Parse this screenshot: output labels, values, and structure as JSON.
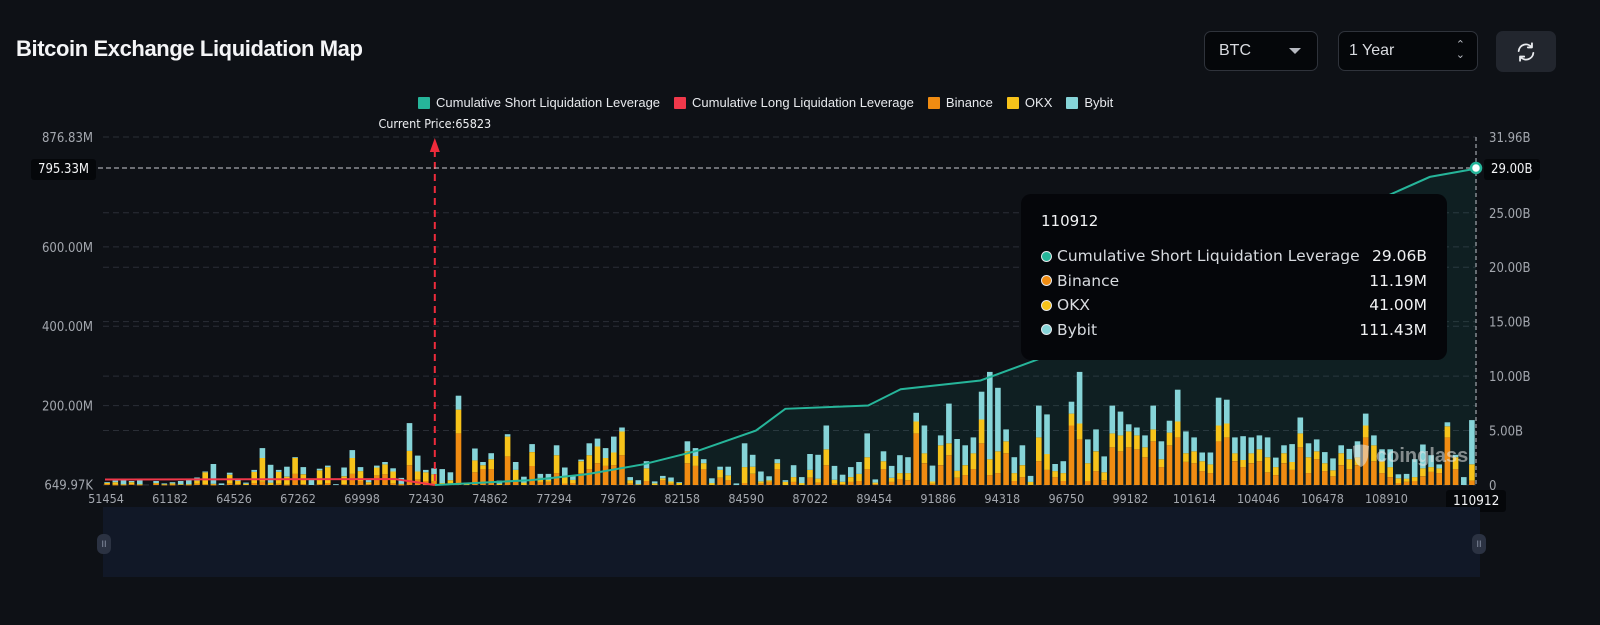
{
  "header": {
    "title": "Bitcoin Exchange Liquidation Map",
    "symbol_select": {
      "value": "BTC",
      "icon": "caret-down-icon"
    },
    "range_select": {
      "value": "1 Year",
      "icon": "up-down-chevron-icon"
    },
    "refresh_button": {
      "icon": "refresh-icon"
    }
  },
  "colors": {
    "short_cum": "#26b59a",
    "long_cum": "#f0384a",
    "binance": "#f08c12",
    "okx": "#f7c31a",
    "bybit": "#86d4d8",
    "current_price_line": "#ee2b3b",
    "background": "#0e1116"
  },
  "tooltip": {
    "title": "110912",
    "rows": [
      {
        "label": "Cumulative Short Liquidation Leverage",
        "value": "29.06B",
        "color": "#26b59a"
      },
      {
        "label": "Binance",
        "value": "11.19M",
        "color": "#f08c12"
      },
      {
        "label": "OKX",
        "value": "41.00M",
        "color": "#f7c31a"
      },
      {
        "label": "Bybit",
        "value": "111.43M",
        "color": "#86d4d8"
      }
    ]
  },
  "crosshair": {
    "left_value_label": "795.33M",
    "right_value_label": "29.00B",
    "x_label": "110912"
  },
  "watermark": "coinglass",
  "chart_data": {
    "type": "bar",
    "title": "Bitcoin Exchange Liquidation Map",
    "stacked": true,
    "legend": [
      "Cumulative Short Liquidation Leverage",
      "Cumulative Long Liquidation Leverage",
      "Binance",
      "OKX",
      "Bybit"
    ],
    "legend_position": "top-center",
    "x_tick_labels": [
      "51454",
      "61182",
      "64526",
      "67262",
      "69998",
      "72430",
      "74862",
      "77294",
      "79726",
      "82158",
      "84590",
      "87022",
      "89454",
      "91886",
      "94318",
      "96750",
      "99182",
      "101614",
      "104046",
      "106478",
      "108910",
      "110912"
    ],
    "x_range": [
      51454,
      110912
    ],
    "y_left": {
      "min_label": "649.97K",
      "max_label": "876.83M",
      "ticks": [
        "649.97K",
        "200.00M",
        "400.00M",
        "600.00M",
        "876.83M"
      ],
      "tick_values_m": [
        0.65,
        200,
        400,
        600,
        876.83
      ],
      "range_m": [
        0,
        876.83
      ]
    },
    "y_right": {
      "ticks": [
        "0",
        "5.00B",
        "10.00B",
        "15.00B",
        "20.00B",
        "25.00B",
        "31.96B"
      ],
      "tick_values_b": [
        0,
        5,
        10,
        15,
        20,
        25,
        31.96
      ],
      "range_b": [
        0,
        31.96
      ]
    },
    "current_price": {
      "label": "Current Price:65823",
      "value": 65823
    },
    "grid": true,
    "units": {
      "bars": "M USD",
      "cumulative": "B USD"
    },
    "bars": {
      "comment": "Estimated stacked values per price bucket, in millions; order binance, okx, bybit",
      "binance": [
        2,
        1,
        1,
        2,
        1,
        0,
        3,
        1,
        1,
        0,
        1,
        3,
        2,
        1,
        0,
        4,
        2,
        0,
        5,
        8,
        0,
        3,
        1,
        28,
        2,
        0,
        2,
        5,
        0,
        2,
        28,
        10,
        2,
        24,
        27,
        4,
        1,
        50,
        14,
        10,
        9,
        2,
        4,
        130,
        0,
        32,
        40,
        40,
        0,
        72,
        8,
        0,
        48,
        8,
        8,
        30,
        4,
        5,
        30,
        40,
        55,
        48,
        50,
        75,
        4,
        0,
        10,
        0,
        12,
        3,
        0,
        55,
        48,
        40,
        0,
        18,
        12,
        0,
        5,
        28,
        4,
        8,
        40,
        0,
        8,
        0,
        18,
        6,
        50,
        3,
        2,
        8,
        10,
        40,
        2,
        40,
        8,
        15,
        12,
        130,
        55,
        3,
        50,
        75,
        18,
        25,
        40,
        105,
        25,
        30,
        80,
        10,
        20,
        0,
        60,
        38,
        20,
        10,
        150,
        115,
        10,
        35,
        12,
        95,
        85,
        95,
        90,
        70,
        110,
        45,
        100,
        120,
        58,
        55,
        35,
        30,
        110,
        120,
        60,
        45,
        55,
        60,
        32,
        25,
        55,
        38,
        95,
        30,
        65,
        35,
        22,
        50,
        40,
        50,
        120,
        60,
        30,
        20,
        5,
        8,
        10,
        22,
        33,
        30,
        120,
        40,
        0,
        11.19
      ],
      "okx": [
        3,
        6,
        1,
        5,
        1,
        0,
        2,
        1,
        3,
        2,
        1,
        8,
        30,
        2,
        0,
        22,
        8,
        3,
        28,
        60,
        6,
        30,
        20,
        40,
        25,
        0,
        35,
        40,
        0,
        20,
        40,
        25,
        5,
        20,
        25,
        30,
        2,
        36,
        20,
        22,
        18,
        3,
        8,
        60,
        6,
        30,
        10,
        25,
        3,
        50,
        30,
        6,
        35,
        10,
        5,
        45,
        15,
        8,
        30,
        35,
        42,
        20,
        32,
        60,
        8,
        2,
        32,
        4,
        5,
        6,
        5,
        30,
        25,
        15,
        5,
        20,
        12,
        0,
        40,
        18,
        5,
        4,
        15,
        8,
        12,
        5,
        20,
        10,
        40,
        10,
        6,
        12,
        18,
        30,
        4,
        20,
        10,
        15,
        18,
        30,
        25,
        6,
        50,
        30,
        18,
        25,
        40,
        60,
        40,
        55,
        30,
        20,
        30,
        8,
        60,
        40,
        15,
        20,
        30,
        40,
        45,
        50,
        20,
        35,
        40,
        40,
        35,
        25,
        30,
        20,
        32,
        40,
        22,
        30,
        25,
        22,
        40,
        35,
        20,
        18,
        25,
        30,
        38,
        20,
        25,
        20,
        35,
        40,
        20,
        20,
        15,
        30,
        25,
        20,
        30,
        40,
        30,
        25,
        12,
        8,
        10,
        20,
        12,
        12,
        28,
        30,
        0,
        41
      ],
      "bybit": [
        2,
        4,
        12,
        3,
        10,
        0,
        5,
        2,
        3,
        8,
        14,
        8,
        2,
        50,
        4,
        5,
        3,
        3,
        5,
        25,
        45,
        5,
        25,
        2,
        18,
        15,
        4,
        4,
        2,
        22,
        20,
        10,
        8,
        5,
        6,
        8,
        15,
        70,
        40,
        6,
        15,
        35,
        20,
        35,
        0,
        30,
        8,
        15,
        8,
        6,
        20,
        15,
        20,
        10,
        15,
        25,
        25,
        12,
        4,
        30,
        20,
        25,
        40,
        10,
        8,
        10,
        18,
        5,
        6,
        10,
        2,
        25,
        20,
        10,
        12,
        8,
        22,
        4,
        60,
        30,
        25,
        10,
        10,
        4,
        30,
        15,
        40,
        60,
        60,
        35,
        18,
        25,
        30,
        60,
        8,
        25,
        30,
        45,
        40,
        22,
        70,
        40,
        25,
        100,
        80,
        50,
        40,
        70,
        220,
        160,
        30,
        40,
        50,
        15,
        80,
        100,
        18,
        30,
        30,
        130,
        60,
        55,
        40,
        70,
        60,
        18,
        20,
        30,
        60,
        45,
        30,
        80,
        55,
        35,
        22,
        30,
        70,
        60,
        40,
        60,
        40,
        35,
        50,
        24,
        20,
        45,
        40,
        35,
        30,
        28,
        30,
        20,
        26,
        40,
        30,
        25,
        30,
        45,
        10,
        12,
        45,
        60,
        30,
        10,
        10,
        6,
        20,
        111.43
      ]
    },
    "cumulative_long_b": {
      "comment": "red line from left edge down to current price",
      "start": 0.5,
      "end_at_current_price": 0.0
    },
    "cumulative_short_b": {
      "start_at_current_price": 0.0,
      "points": [
        [
          65823,
          0
        ],
        [
          67262,
          0.15
        ],
        [
          69998,
          0.45
        ],
        [
          72430,
          1.0
        ],
        [
          74862,
          1.9
        ],
        [
          77294,
          3.2
        ],
        [
          79726,
          5.0
        ],
        [
          81000,
          7.0
        ],
        [
          84590,
          7.3
        ],
        [
          86000,
          8.8
        ],
        [
          89454,
          9.6
        ],
        [
          91886,
          11.5
        ],
        [
          94318,
          13.5
        ],
        [
          96750,
          16.2
        ],
        [
          99182,
          18.5
        ],
        [
          101614,
          21.0
        ],
        [
          104046,
          23.5
        ],
        [
          106478,
          26.0
        ],
        [
          108910,
          28.3
        ],
        [
          110912,
          29.06
        ]
      ]
    }
  }
}
